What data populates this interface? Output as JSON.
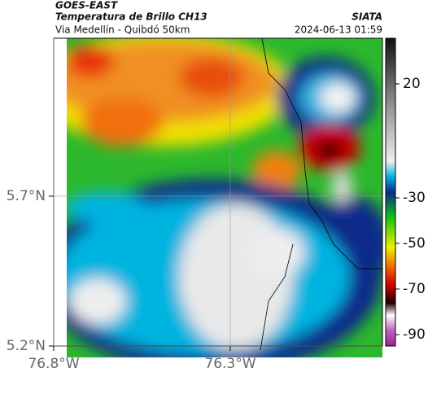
{
  "header": {
    "satellite": "GOES-EAST",
    "title": "Temperatura de Brillo CH13",
    "subtitle": "Via Medellín - Quibdó 50km",
    "source": "SIATA",
    "datetime": "2024-06-13 01:59"
  },
  "map": {
    "xlim": [
      -76.8,
      -75.869
    ],
    "ylim": [
      5.2,
      6.227
    ],
    "xticks": [
      {
        "value": -76.8,
        "label": "76.8°W"
      },
      {
        "value": -76.3,
        "label": "76.3°W"
      }
    ],
    "yticks": [
      {
        "value": 5.2,
        "label": "5.2°N"
      },
      {
        "value": 5.7,
        "label": "5.7°N"
      }
    ],
    "grid": true
  },
  "colorbar": {
    "lim": [
      -95,
      40
    ],
    "ticks": [
      20,
      -30,
      -50,
      -70,
      -90
    ]
  }
}
